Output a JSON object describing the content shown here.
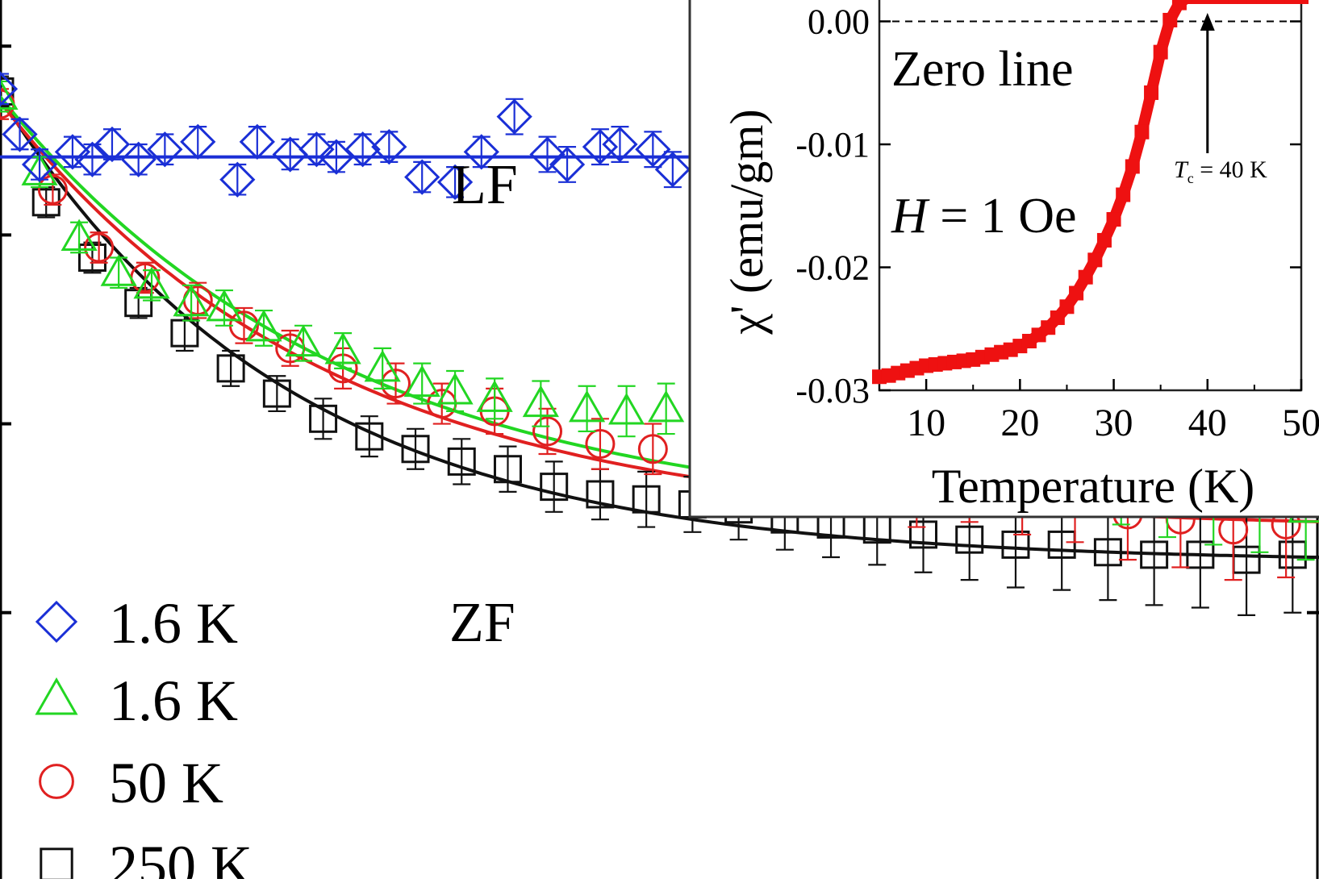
{
  "chart_data": [
    {
      "id": "main",
      "type": "scatter",
      "title": "",
      "xlabel": "",
      "ylabel": "",
      "xlim": [
        0,
        10
      ],
      "ylim": [
        0.6,
        1.05
      ],
      "annotations": [
        {
          "text": "LF"
        },
        {
          "text": "ZF"
        }
      ],
      "legend": {
        "placement": "bottom-left",
        "entries": [
          {
            "label": "1.6 K",
            "marker": "diamond",
            "color": "#1a2fd6"
          },
          {
            "label": "1.6 K",
            "marker": "triangle",
            "color": "#22d622"
          },
          {
            "label": "50 K",
            "marker": "circle",
            "color": "#e02020"
          },
          {
            "label": "250 K",
            "marker": "square",
            "color": "#111111"
          }
        ]
      },
      "series": [
        {
          "name": "1.6 K LF",
          "marker": "diamond",
          "color": "#1a2fd6",
          "x": [
            0.0,
            0.15,
            0.3,
            0.55,
            0.7,
            0.85,
            1.05,
            1.25,
            1.5,
            1.8,
            1.95,
            2.2,
            2.4,
            2.55,
            2.75,
            2.95,
            3.2,
            3.45,
            3.65,
            3.9,
            4.15,
            4.3,
            4.55,
            4.7,
            4.95,
            5.1,
            5.4,
            5.65,
            5.9,
            6.15,
            6.45,
            6.6,
            6.85,
            7.05,
            7.3,
            7.5,
            7.75,
            7.95,
            8.15
          ],
          "y": [
            0.933,
            0.915,
            0.903,
            0.908,
            0.905,
            0.911,
            0.905,
            0.909,
            0.912,
            0.897,
            0.912,
            0.907,
            0.909,
            0.906,
            0.909,
            0.91,
            0.898,
            0.896,
            0.908,
            0.922,
            0.907,
            0.903,
            0.91,
            0.911,
            0.909,
            0.901,
            0.91,
            0.895,
            0.927,
            0.903,
            0.913,
            0.905,
            0.898,
            0.899,
            0.905,
            0.894,
            0.913,
            0.905,
            0.903
          ],
          "err": [
            0.006,
            0.006,
            0.006,
            0.006,
            0.006,
            0.006,
            0.006,
            0.006,
            0.006,
            0.006,
            0.006,
            0.006,
            0.006,
            0.006,
            0.006,
            0.006,
            0.006,
            0.006,
            0.006,
            0.007,
            0.007,
            0.007,
            0.007,
            0.007,
            0.007,
            0.007,
            0.007,
            0.007,
            0.008,
            0.008,
            0.008,
            0.008,
            0.008,
            0.008,
            0.008,
            0.008,
            0.008,
            0.008,
            0.008
          ],
          "fit": {
            "type": "constant",
            "value": 0.906
          }
        },
        {
          "name": "1.6 K ZF",
          "marker": "triangle",
          "color": "#22d622",
          "x": [
            0.0,
            0.3,
            0.6,
            0.9,
            1.15,
            1.45,
            1.7,
            2.0,
            2.3,
            2.6,
            2.9,
            3.2,
            3.45,
            3.75,
            4.1,
            4.45,
            4.75,
            5.05,
            5.4,
            5.7,
            6.05,
            6.4,
            6.8,
            7.15,
            7.5,
            7.85,
            8.15,
            8.5,
            8.85,
            9.2,
            9.55,
            9.9
          ],
          "y": [
            0.93,
            0.9,
            0.874,
            0.86,
            0.855,
            0.848,
            0.846,
            0.838,
            0.832,
            0.829,
            0.822,
            0.816,
            0.813,
            0.81,
            0.808,
            0.806,
            0.805,
            0.806,
            0.8,
            0.798,
            0.794,
            0.792,
            0.79,
            0.787,
            0.783,
            0.78,
            0.778,
            0.776,
            0.772,
            0.77,
            0.768,
            0.766
          ],
          "err": [
            0.006,
            0.006,
            0.006,
            0.006,
            0.006,
            0.007,
            0.007,
            0.007,
            0.007,
            0.007,
            0.008,
            0.008,
            0.008,
            0.008,
            0.009,
            0.009,
            0.01,
            0.01,
            0.011,
            0.011,
            0.012,
            0.012,
            0.013,
            0.013,
            0.014,
            0.015,
            0.015,
            0.016,
            0.017,
            0.018,
            0.019,
            0.02
          ],
          "fit": {
            "type": "exp",
            "a": 0.17,
            "tau": 2.6,
            "c": 0.76
          }
        },
        {
          "name": "50 K ZF",
          "marker": "circle",
          "color": "#e02020",
          "x": [
            0.0,
            0.4,
            0.75,
            1.1,
            1.5,
            1.85,
            2.2,
            2.6,
            3.0,
            3.35,
            3.75,
            4.15,
            4.55,
            4.95,
            5.35,
            5.75,
            6.15,
            6.55,
            6.95,
            7.35,
            7.75,
            8.15,
            8.55,
            8.95,
            9.35,
            9.75
          ],
          "y": [
            0.927,
            0.893,
            0.87,
            0.858,
            0.849,
            0.839,
            0.83,
            0.822,
            0.816,
            0.808,
            0.805,
            0.797,
            0.792,
            0.79,
            0.786,
            0.782,
            0.78,
            0.777,
            0.773,
            0.776,
            0.772,
            0.77,
            0.764,
            0.762,
            0.758,
            0.76
          ],
          "err": [
            0.006,
            0.006,
            0.006,
            0.006,
            0.007,
            0.007,
            0.007,
            0.008,
            0.008,
            0.008,
            0.009,
            0.009,
            0.01,
            0.01,
            0.011,
            0.012,
            0.012,
            0.013,
            0.014,
            0.015,
            0.016,
            0.017,
            0.018,
            0.019,
            0.02,
            0.021
          ],
          "fit": {
            "type": "exp",
            "a": 0.17,
            "tau": 2.5,
            "c": 0.758
          }
        },
        {
          "name": "250 K ZF",
          "marker": "square",
          "color": "#111111",
          "x": [
            0.0,
            0.35,
            0.7,
            1.05,
            1.4,
            1.75,
            2.1,
            2.45,
            2.8,
            3.15,
            3.5,
            3.85,
            4.2,
            4.55,
            4.9,
            5.25,
            5.6,
            5.95,
            6.3,
            6.65,
            7.0,
            7.35,
            7.7,
            8.05,
            8.4,
            8.75,
            9.1,
            9.45,
            9.8
          ],
          "y": [
            0.932,
            0.888,
            0.866,
            0.848,
            0.836,
            0.822,
            0.812,
            0.802,
            0.795,
            0.79,
            0.785,
            0.782,
            0.775,
            0.772,
            0.77,
            0.768,
            0.766,
            0.762,
            0.76,
            0.758,
            0.756,
            0.754,
            0.752,
            0.752,
            0.749,
            0.748,
            0.748,
            0.746,
            0.748
          ],
          "err": [
            0.006,
            0.006,
            0.006,
            0.006,
            0.007,
            0.007,
            0.007,
            0.008,
            0.008,
            0.008,
            0.009,
            0.009,
            0.01,
            0.01,
            0.011,
            0.011,
            0.012,
            0.012,
            0.013,
            0.014,
            0.015,
            0.016,
            0.017,
            0.018,
            0.019,
            0.02,
            0.021,
            0.022,
            0.023
          ],
          "fit": {
            "type": "exp",
            "a": 0.185,
            "tau": 2.2,
            "c": 0.745
          }
        }
      ]
    },
    {
      "id": "inset",
      "type": "scatter",
      "title": "",
      "xlabel": "Temperature (K)",
      "ylabel": "χ' (emu/gm)",
      "xlim": [
        5,
        50
      ],
      "ylim": [
        -0.03,
        0.002
      ],
      "xticks": [
        10,
        20,
        30,
        40,
        50
      ],
      "xtick_labels": [
        "10",
        "20",
        "30",
        "40",
        "50"
      ],
      "yticks": [
        0.0,
        -0.01,
        -0.02,
        -0.03
      ],
      "ytick_labels": [
        "0.00",
        "-0.01",
        "-0.02",
        "-0.03"
      ],
      "annotations": [
        {
          "text": "Zero line"
        },
        {
          "text": "H = 1 Oe",
          "italic_part": "H",
          "rest": " = 1 Oe"
        },
        {
          "text": "Tc = 40 K",
          "symbol": "T",
          "subscript": "c",
          "rest": " = 40 K",
          "arrow_at_x": 40
        }
      ],
      "zero_line": 0.0,
      "series": [
        {
          "name": "chi prime",
          "color": "#ee1111",
          "marker": "square",
          "x": [
            5,
            6,
            7,
            8,
            9,
            10,
            11,
            12,
            13,
            14,
            15,
            16,
            17,
            18,
            19,
            20,
            21,
            22,
            23,
            24,
            25,
            26,
            27,
            28,
            29,
            30,
            31,
            32,
            33,
            34,
            35,
            36,
            37,
            38,
            39,
            40,
            41,
            42,
            43,
            44,
            45,
            46,
            47,
            48,
            49,
            50
          ],
          "y": [
            -0.0289,
            -0.0288,
            -0.0286,
            -0.0284,
            -0.0282,
            -0.028,
            -0.0279,
            -0.0278,
            -0.0277,
            -0.0276,
            -0.0275,
            -0.0273,
            -0.0271,
            -0.0269,
            -0.0267,
            -0.0264,
            -0.026,
            -0.0255,
            -0.0249,
            -0.0241,
            -0.0232,
            -0.0221,
            -0.0208,
            -0.0194,
            -0.0178,
            -0.0161,
            -0.0141,
            -0.0118,
            -0.009,
            -0.0058,
            -0.0025,
            0.0001,
            0.0015,
            0.002,
            0.002,
            0.002,
            0.002,
            0.002,
            0.002,
            0.002,
            0.002,
            0.002,
            0.002,
            0.002,
            0.002,
            0.002
          ]
        }
      ]
    }
  ]
}
